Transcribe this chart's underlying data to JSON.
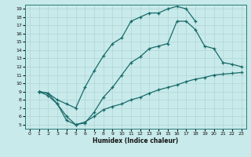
{
  "bg_color": "#c8eaea",
  "line_color": "#1a6b6b",
  "grid_color": "#b0d4d4",
  "xlim": [
    -0.5,
    23.5
  ],
  "ylim": [
    4.5,
    19.5
  ],
  "xticks": [
    0,
    1,
    2,
    3,
    4,
    5,
    6,
    7,
    8,
    9,
    10,
    11,
    12,
    13,
    14,
    15,
    16,
    17,
    18,
    19,
    20,
    21,
    22,
    23
  ],
  "yticks": [
    5,
    6,
    7,
    8,
    9,
    10,
    11,
    12,
    13,
    14,
    15,
    16,
    17,
    18,
    19
  ],
  "xlabel": "Humidex (Indice chaleur)",
  "curve1_x": [
    1,
    2,
    3,
    4,
    5,
    6,
    7,
    8,
    9,
    10,
    11,
    12,
    13,
    14,
    15,
    16,
    17,
    18
  ],
  "curve1_y": [
    9,
    8.8,
    8.0,
    7.5,
    7.0,
    9.5,
    11.5,
    13.3,
    14.8,
    15.5,
    17.5,
    18.0,
    18.5,
    18.5,
    19.0,
    19.3,
    19.0,
    17.5
  ],
  "curve2_x": [
    1,
    2,
    3,
    4,
    5,
    6,
    7,
    8,
    9,
    10,
    11,
    12,
    13,
    14,
    15,
    16,
    17,
    18,
    19,
    20,
    21,
    22,
    23
  ],
  "curve2_y": [
    9,
    8.8,
    7.5,
    6.0,
    5.0,
    5.2,
    6.5,
    8.3,
    9.5,
    11.0,
    12.5,
    13.2,
    14.2,
    14.5,
    14.8,
    17.5,
    17.5,
    16.5,
    14.5,
    14.2,
    12.5,
    12.3,
    12.0
  ],
  "curve3_x": [
    1,
    2,
    3,
    4,
    5,
    6,
    7,
    8,
    9,
    10,
    11,
    12,
    13,
    14,
    15,
    16,
    17,
    18,
    19,
    20,
    21,
    22,
    23
  ],
  "curve3_y": [
    9,
    8.5,
    7.5,
    5.5,
    5.0,
    5.3,
    6.0,
    6.8,
    7.2,
    7.5,
    8.0,
    8.3,
    8.8,
    9.2,
    9.5,
    9.8,
    10.2,
    10.5,
    10.7,
    11.0,
    11.1,
    11.2,
    11.3
  ]
}
